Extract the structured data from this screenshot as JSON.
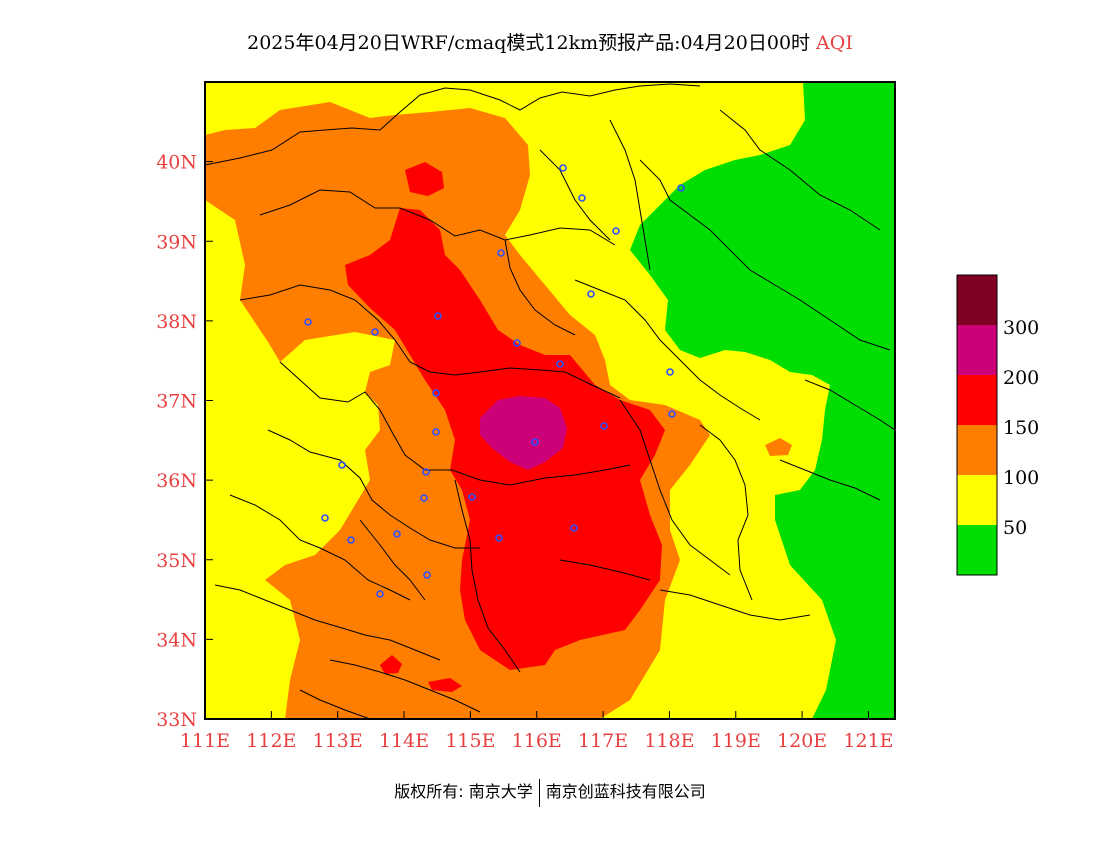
{
  "title": {
    "main": "2025年04月20日WRF/cmaq模式12km预报产品:04月20日00时",
    "variable": "AQI"
  },
  "map": {
    "lon_ticks": [
      "111E",
      "112E",
      "113E",
      "114E",
      "115E",
      "116E",
      "117E",
      "118E",
      "119E",
      "120E",
      "121E"
    ],
    "lat_ticks": [
      "40N",
      "39N",
      "38N",
      "37N",
      "36N",
      "35N",
      "34N",
      "33N"
    ],
    "lon_range": [
      111,
      121.4
    ],
    "lat_range": [
      33,
      41
    ],
    "tick_color": "#e84040"
  },
  "legend": {
    "labels": [
      "300",
      "200",
      "150",
      "100",
      "50"
    ],
    "colors": {
      "level_0_50": "#00dd00",
      "level_50_100": "#ffff00",
      "level_100_150": "#ff7e00",
      "level_150_200": "#ff0000",
      "level_200_300": "#cc0077",
      "level_300_plus": "#7e0023"
    }
  },
  "footer": {
    "copyright": "版权所有: 南京大学",
    "company": "南京创蓝科技有限公司"
  }
}
